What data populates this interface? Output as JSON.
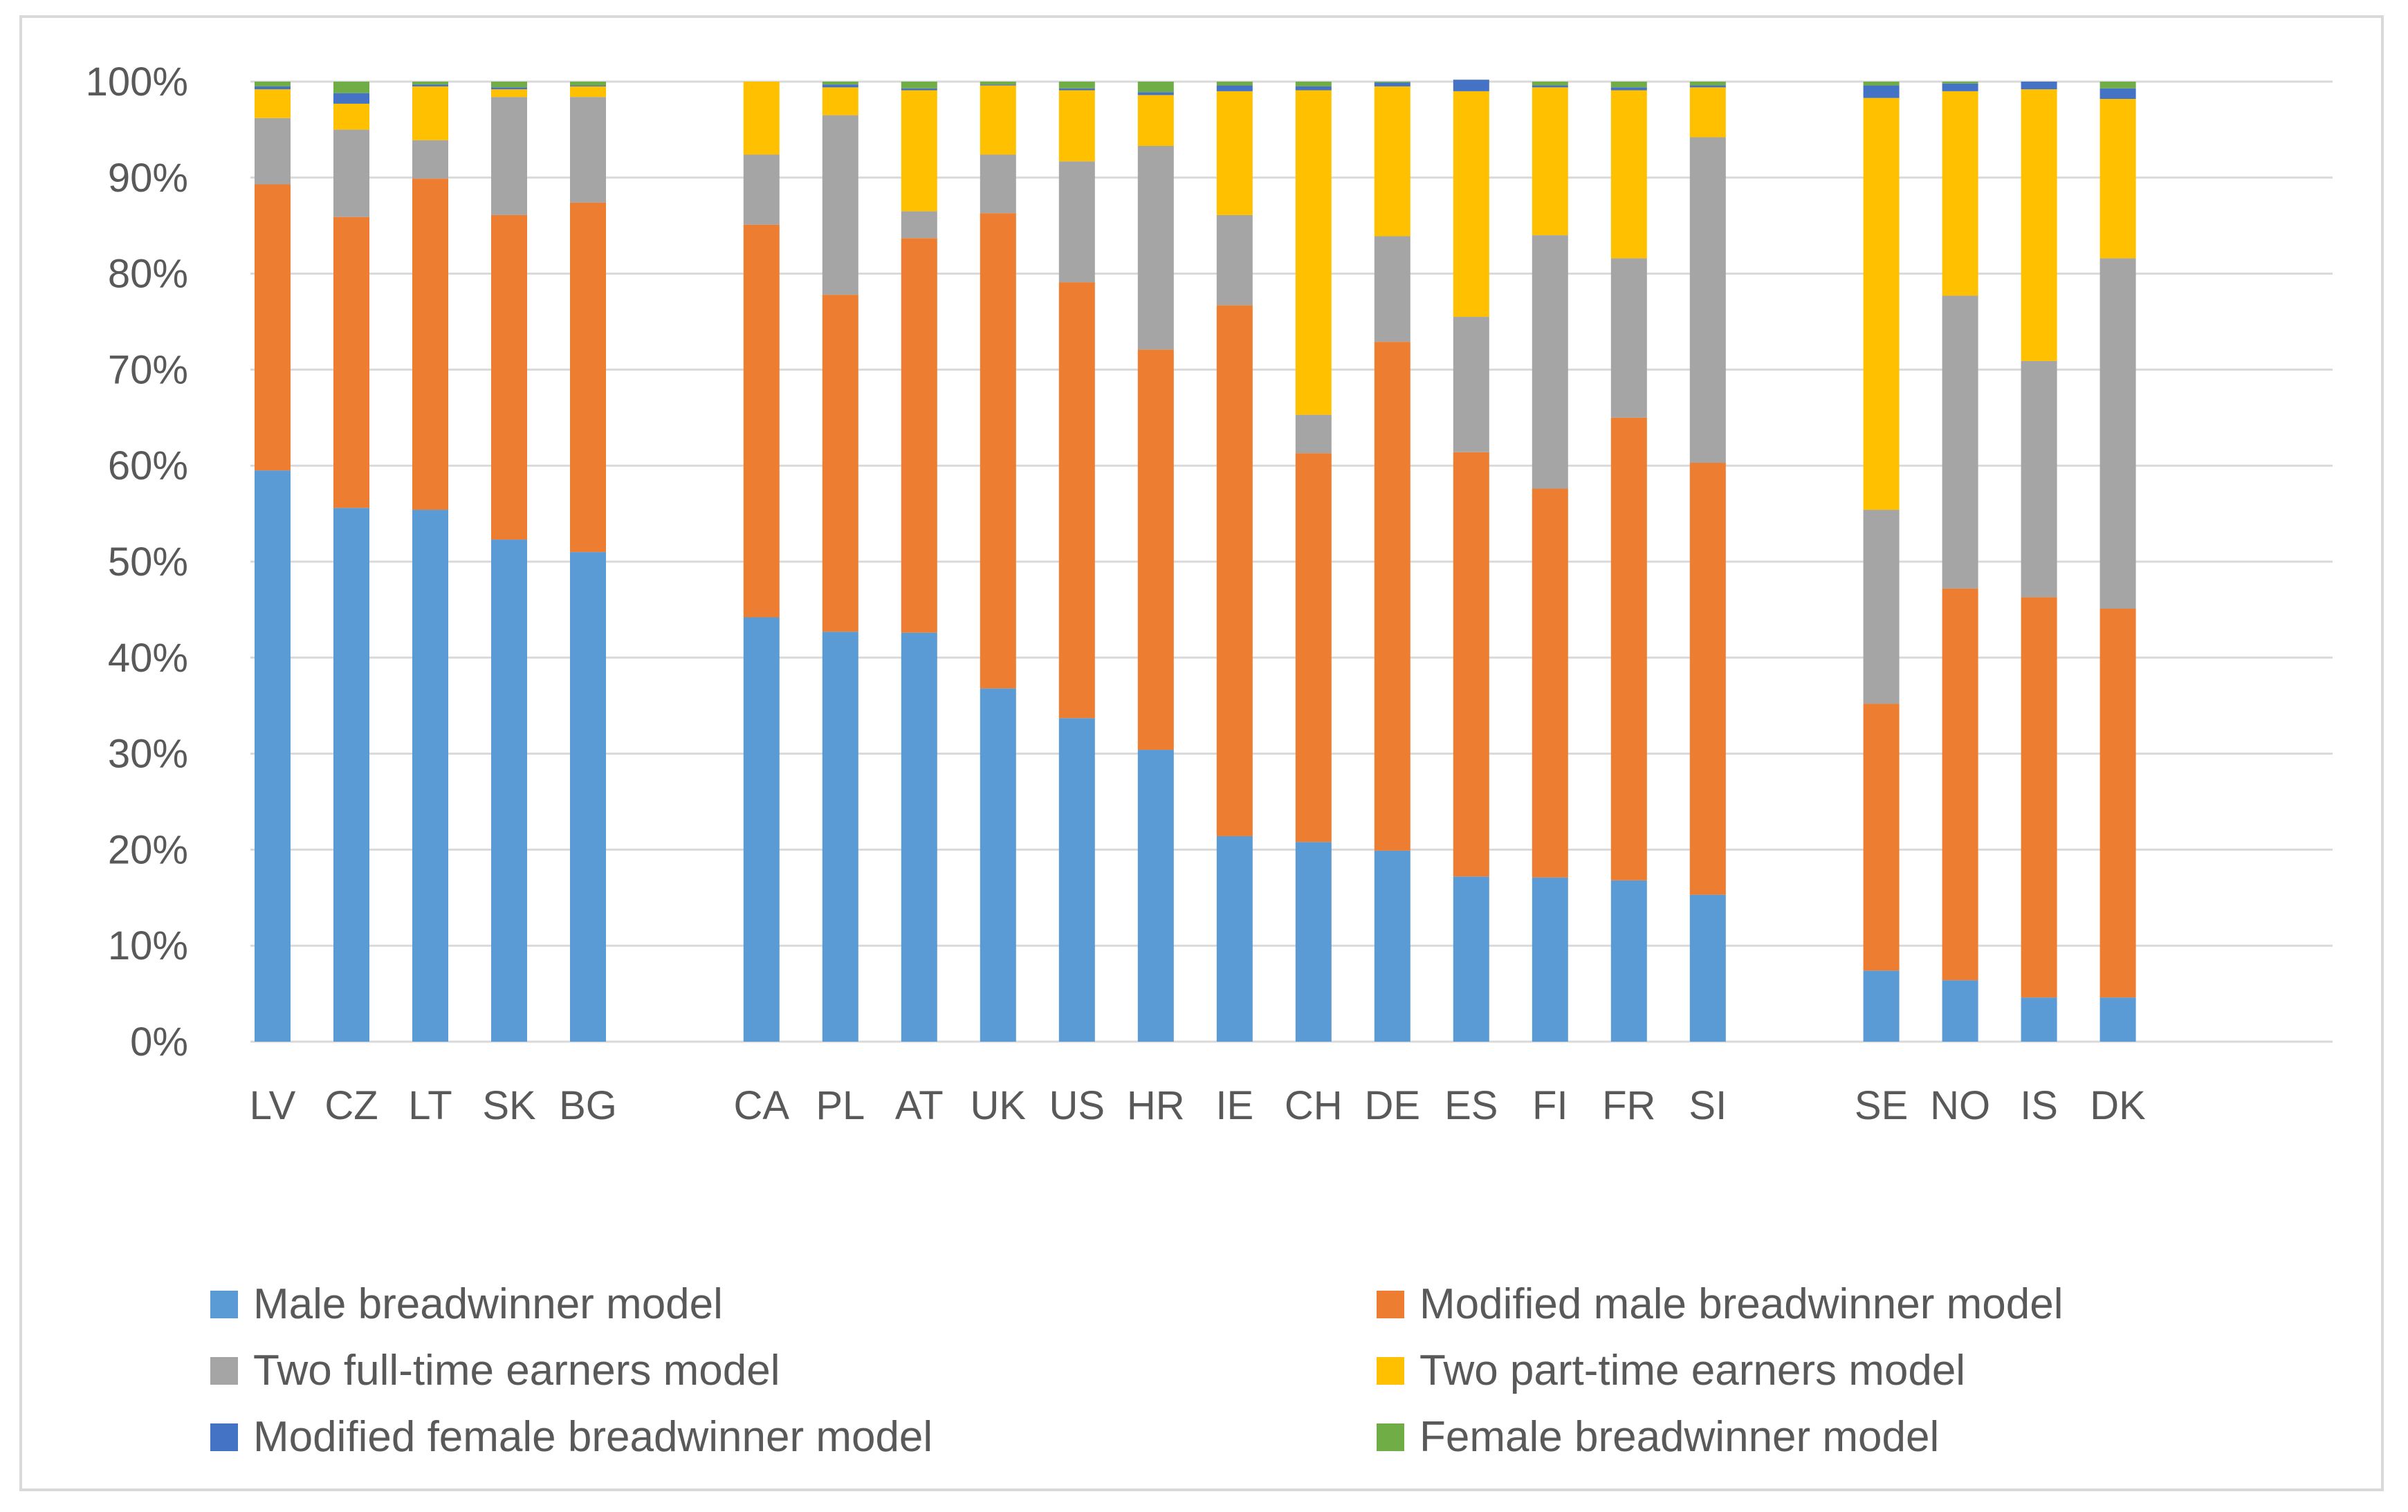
{
  "chart_data": {
    "type": "bar",
    "stacked": true,
    "title": "",
    "xlabel": "",
    "ylabel": "",
    "ylim": [
      0,
      100
    ],
    "yticks": [
      "0%",
      "10%",
      "20%",
      "30%",
      "40%",
      "50%",
      "60%",
      "70%",
      "80%",
      "90%",
      "100%"
    ],
    "groups": [
      [
        "LV",
        "CZ",
        "LT",
        "SK",
        "BG"
      ],
      [
        "CA",
        "PL",
        "AT",
        "UK",
        "US",
        "HR",
        "IE",
        "CH",
        "DE",
        "ES",
        "FI",
        "FR",
        "SI"
      ],
      [
        "SE",
        "NO",
        "IS",
        "DK"
      ]
    ],
    "categories": [
      "LV",
      "CZ",
      "LT",
      "SK",
      "BG",
      "CA",
      "PL",
      "AT",
      "UK",
      "US",
      "HR",
      "IE",
      "CH",
      "DE",
      "ES",
      "FI",
      "FR",
      "SI",
      "SE",
      "NO",
      "IS",
      "DK"
    ],
    "series": [
      {
        "name": "Male breadwinner model",
        "color": "#5b9bd5",
        "values": [
          59.5,
          55.6,
          55.4,
          52.3,
          51.0,
          44.2,
          42.7,
          42.6,
          36.8,
          33.7,
          30.4,
          21.4,
          20.8,
          19.9,
          17.2,
          17.1,
          16.8,
          15.3,
          7.4,
          6.4,
          4.6,
          4.6
        ]
      },
      {
        "name": "Modified male breadwinner model",
        "color": "#ed7d31",
        "values": [
          29.8,
          30.3,
          34.5,
          33.8,
          36.4,
          40.9,
          35.1,
          41.1,
          49.5,
          45.4,
          41.7,
          55.3,
          40.5,
          53.0,
          44.2,
          40.5,
          48.2,
          45.0,
          27.8,
          40.8,
          41.7,
          40.5
        ]
      },
      {
        "name": "Two full-time earners model",
        "color": "#a5a5a5",
        "values": [
          6.9,
          9.1,
          4.0,
          12.3,
          11.0,
          7.3,
          18.7,
          2.8,
          6.1,
          12.6,
          21.2,
          9.4,
          4.0,
          11.0,
          14.1,
          26.4,
          16.6,
          33.9,
          20.2,
          30.5,
          24.6,
          36.5
        ]
      },
      {
        "name": "Two part-time earners model",
        "color": "#ffc000",
        "values": [
          3.0,
          2.7,
          5.6,
          0.8,
          1.1,
          7.6,
          2.9,
          12.6,
          7.2,
          7.4,
          5.3,
          12.9,
          33.8,
          15.6,
          23.5,
          15.4,
          17.5,
          5.2,
          42.9,
          21.3,
          28.3,
          16.6
        ]
      },
      {
        "name": "Modified female breadwinner model",
        "color": "#4472c4",
        "values": [
          0.3,
          1.1,
          0.2,
          0.2,
          0.1,
          0.0,
          0.3,
          0.2,
          0.1,
          0.2,
          0.3,
          0.6,
          0.4,
          0.4,
          1.2,
          0.2,
          0.3,
          0.2,
          1.3,
          0.8,
          0.8,
          1.1
        ]
      },
      {
        "name": "Female breadwinner model",
        "color": "#70ad47",
        "values": [
          0.5,
          1.2,
          0.3,
          0.6,
          0.4,
          0.0,
          0.3,
          0.7,
          0.3,
          0.7,
          1.1,
          0.4,
          0.5,
          0.1,
          0.0,
          0.4,
          0.6,
          0.4,
          0.4,
          0.2,
          0.0,
          0.7
        ]
      }
    ],
    "grid": true,
    "legend": "bottom"
  }
}
